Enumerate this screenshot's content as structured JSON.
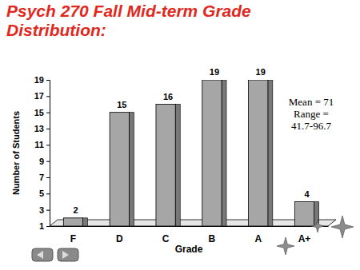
{
  "chart_data": {
    "type": "bar",
    "title": "Psych 270 Fall Mid-term Grade Distribution:",
    "x_label": "Grade",
    "y_label": "Number of Students",
    "categories": [
      "F",
      "D",
      "C",
      "B",
      "A",
      "A+"
    ],
    "values": [
      2,
      15,
      16,
      19,
      19,
      4
    ],
    "color": "#a6a6a6",
    "ylim": [
      1,
      19
    ],
    "yticks": [
      1,
      3,
      5,
      7,
      9,
      11,
      13,
      15,
      17,
      19
    ],
    "grid": false,
    "data_labels": true,
    "annotations": [
      "Mean = 71",
      "Range = 41.7-96.7"
    ]
  }
}
